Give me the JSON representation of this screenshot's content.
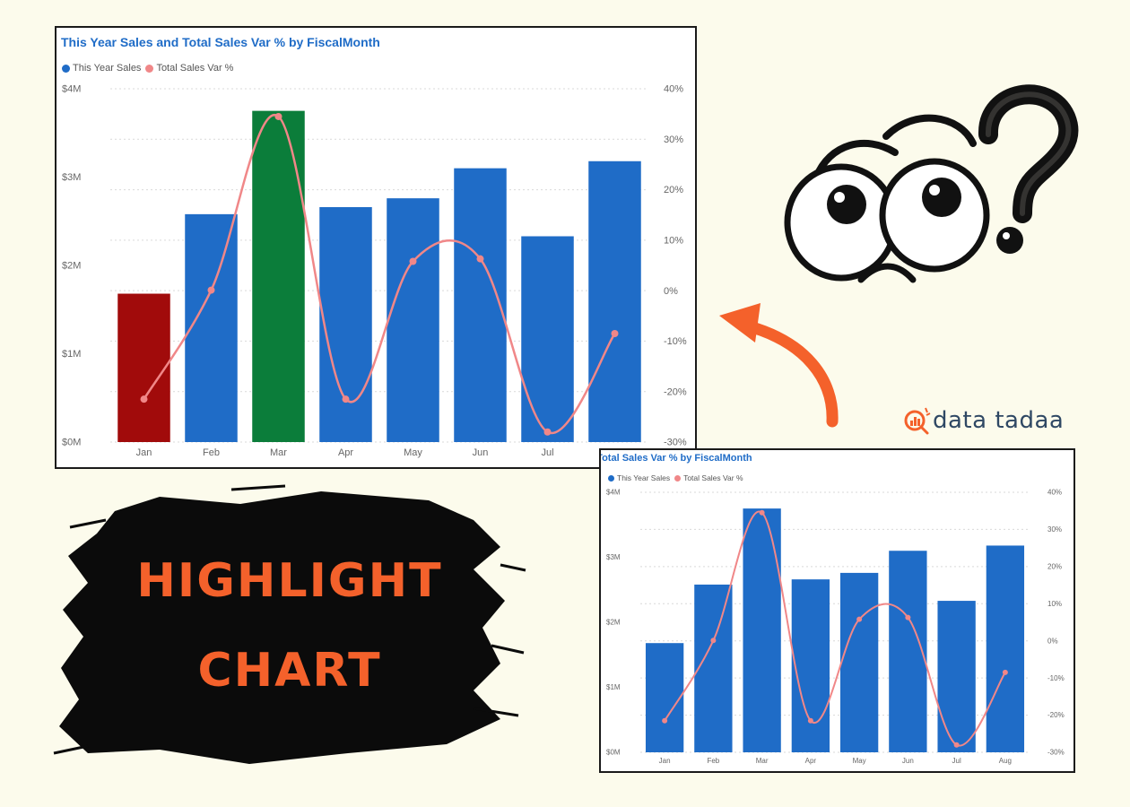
{
  "charts": [
    {
      "title": "This Year Sales and Total Sales Var % by FiscalMonth",
      "legend": [
        "This Year Sales",
        "Total Sales Var %"
      ]
    },
    {
      "title": "This Year Sales and Total Sales Var % by FiscalMonth",
      "legend": [
        "This Year Sales",
        "Total Sales Var %"
      ]
    }
  ],
  "chart_data": [
    {
      "type": "bar",
      "title": "This Year Sales and Total Sales Var % by FiscalMonth",
      "categories": [
        "Jan",
        "Feb",
        "Mar",
        "Apr",
        "May",
        "Jun",
        "Jul",
        "Aug"
      ],
      "series": [
        {
          "name": "This Year Sales",
          "kind": "bar",
          "axis": "left",
          "values": [
            1.68,
            2.58,
            3.75,
            2.66,
            2.76,
            3.1,
            2.33,
            3.18
          ],
          "unit": "M"
        },
        {
          "name": "Total Sales Var %",
          "kind": "line",
          "axis": "right",
          "values": [
            -21.5,
            0.1,
            34.5,
            -21.5,
            5.8,
            6.3,
            -28.0,
            -8.5
          ]
        }
      ],
      "bar_colors": [
        "#a10b0b",
        "#1f6cc7",
        "#0b7d3a",
        "#1f6cc7",
        "#1f6cc7",
        "#1f6cc7",
        "#1f6cc7",
        "#1f6cc7"
      ],
      "line_color": "#f08788",
      "y_left": {
        "min": 0,
        "max": 4,
        "ticks": [
          "$0M",
          "$1M",
          "$2M",
          "$3M",
          "$4M"
        ]
      },
      "y_right": {
        "min": -30,
        "max": 40,
        "ticks": [
          "-30%",
          "-20%",
          "-10%",
          "0%",
          "10%",
          "20%",
          "30%",
          "40%"
        ]
      },
      "grid": true,
      "legend_position": "top-left"
    },
    {
      "type": "bar",
      "title": "This Year Sales and Total Sales Var % by FiscalMonth",
      "categories": [
        "Jan",
        "Feb",
        "Mar",
        "Apr",
        "May",
        "Jun",
        "Jul",
        "Aug"
      ],
      "series": [
        {
          "name": "This Year Sales",
          "kind": "bar",
          "axis": "left",
          "values": [
            1.68,
            2.58,
            3.75,
            2.66,
            2.76,
            3.1,
            2.33,
            3.18
          ],
          "unit": "M"
        },
        {
          "name": "Total Sales Var %",
          "kind": "line",
          "axis": "right",
          "values": [
            -21.5,
            0.1,
            34.5,
            -21.5,
            5.8,
            6.3,
            -28.0,
            -8.5
          ]
        }
      ],
      "bar_colors": [
        "#1f6cc7",
        "#1f6cc7",
        "#1f6cc7",
        "#1f6cc7",
        "#1f6cc7",
        "#1f6cc7",
        "#1f6cc7",
        "#1f6cc7"
      ],
      "line_color": "#f08788",
      "y_left": {
        "min": 0,
        "max": 4,
        "ticks": [
          "$0M",
          "$1M",
          "$2M",
          "$3M",
          "$4M"
        ]
      },
      "y_right": {
        "min": -30,
        "max": 40,
        "ticks": [
          "-30%",
          "-20%",
          "-10%",
          "0%",
          "10%",
          "20%",
          "30%",
          "40%"
        ]
      },
      "grid": true,
      "legend_position": "top-left"
    }
  ],
  "legend_colors": {
    "sales": "#1f6cc7",
    "var": "#f08788"
  },
  "brand": {
    "name": "data tadaa"
  },
  "highlight": {
    "line1": "HIGHLIGHT",
    "line2": "CHART"
  },
  "colors": {
    "background": "#fcfbec",
    "accent": "#f4612b",
    "brand": "#2f4864"
  }
}
